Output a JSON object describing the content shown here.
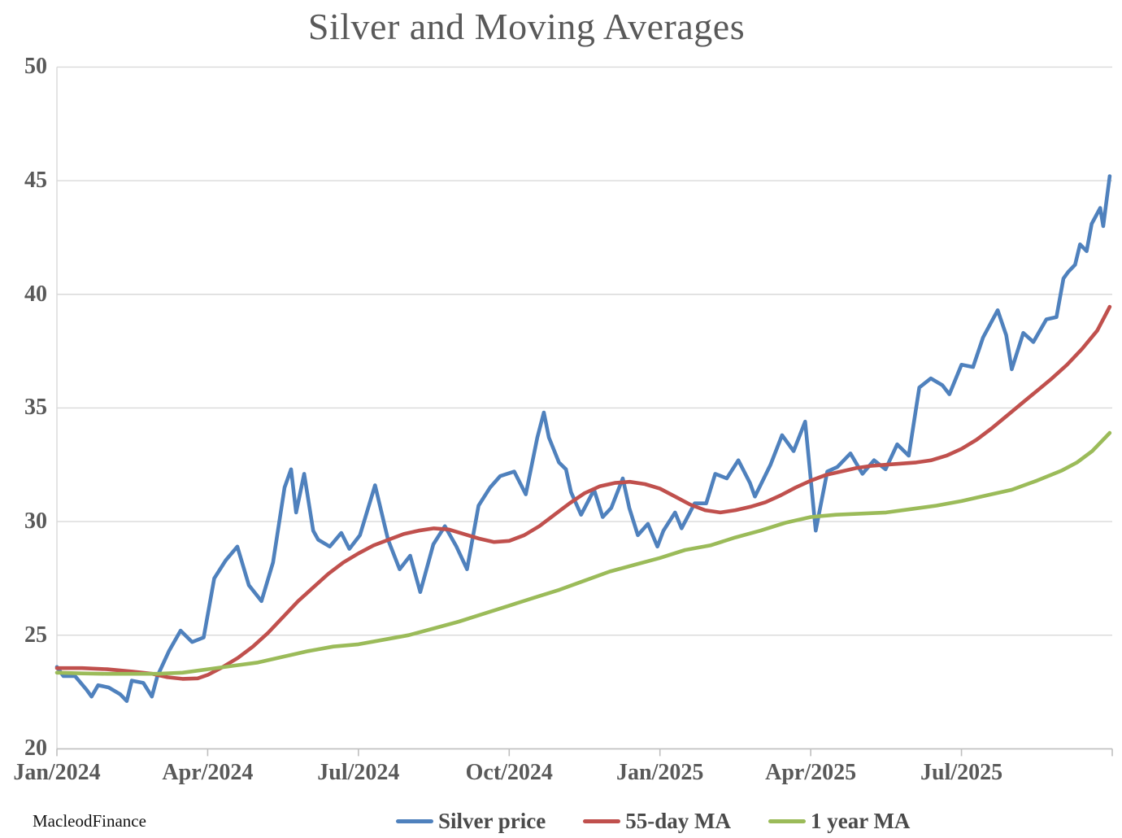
{
  "title": "Silver and Moving Averages",
  "watermark": "MacleodFinance",
  "palette": {
    "silver_price": "#4F81BD",
    "ma_55day": "#C0504D",
    "ma_1year": "#9BBB59",
    "gridline": "#d9d9d9",
    "axis_line": "#bfbfbf",
    "text_gray": "#595959"
  },
  "chart_data": {
    "type": "line",
    "title": "Silver and Moving Averages",
    "xlabel": "",
    "ylabel": "",
    "grid": true,
    "legend_position": "bottom",
    "y_axis": {
      "range": [
        20,
        50
      ],
      "ticks": [
        50,
        45,
        40,
        35,
        30,
        25,
        20
      ]
    },
    "x_axis": {
      "unit": "months since Jan 2024",
      "range_months": [
        0,
        21
      ],
      "tick_months": [
        0,
        3,
        6,
        9,
        12,
        15,
        18
      ],
      "tick_labels": [
        "Jan/2024",
        "Apr/2024",
        "Jul/2024",
        "Oct/2024",
        "Jan/2025",
        "Apr/2025",
        "Jul/2025"
      ],
      "minor_tick_months": [
        0,
        3,
        6,
        9,
        12,
        15,
        18,
        21
      ]
    },
    "series": [
      {
        "name": "Silver price",
        "color": "#4F81BD",
        "points": [
          [
            0,
            23.6
          ],
          [
            0.13,
            23.2
          ],
          [
            0.36,
            23.2
          ],
          [
            0.59,
            22.6
          ],
          [
            0.69,
            22.3
          ],
          [
            0.82,
            22.8
          ],
          [
            1.03,
            22.7
          ],
          [
            1.26,
            22.4
          ],
          [
            1.39,
            22.1
          ],
          [
            1.49,
            23.0
          ],
          [
            1.72,
            22.9
          ],
          [
            1.89,
            22.3
          ],
          [
            2.0,
            23.2
          ],
          [
            2.23,
            24.3
          ],
          [
            2.46,
            25.2
          ],
          [
            2.69,
            24.7
          ],
          [
            2.92,
            24.9
          ],
          [
            3.13,
            27.5
          ],
          [
            3.36,
            28.3
          ],
          [
            3.59,
            28.9
          ],
          [
            3.82,
            27.2
          ],
          [
            4.07,
            26.5
          ],
          [
            4.3,
            28.2
          ],
          [
            4.53,
            31.5
          ],
          [
            4.66,
            32.3
          ],
          [
            4.76,
            30.4
          ],
          [
            4.92,
            32.1
          ],
          [
            5.1,
            29.6
          ],
          [
            5.2,
            29.2
          ],
          [
            5.43,
            28.9
          ],
          [
            5.66,
            29.5
          ],
          [
            5.82,
            28.8
          ],
          [
            6.03,
            29.4
          ],
          [
            6.33,
            31.6
          ],
          [
            6.59,
            29.2
          ],
          [
            6.82,
            27.9
          ],
          [
            7.03,
            28.5
          ],
          [
            7.23,
            26.9
          ],
          [
            7.49,
            29.0
          ],
          [
            7.72,
            29.8
          ],
          [
            7.95,
            28.9
          ],
          [
            8.16,
            27.9
          ],
          [
            8.39,
            30.7
          ],
          [
            8.62,
            31.5
          ],
          [
            8.82,
            32.0
          ],
          [
            9.1,
            32.2
          ],
          [
            9.33,
            31.2
          ],
          [
            9.56,
            33.7
          ],
          [
            9.69,
            34.8
          ],
          [
            9.79,
            33.7
          ],
          [
            9.99,
            32.6
          ],
          [
            10.13,
            32.3
          ],
          [
            10.23,
            31.3
          ],
          [
            10.43,
            30.3
          ],
          [
            10.69,
            31.4
          ],
          [
            10.86,
            30.2
          ],
          [
            11.03,
            30.6
          ],
          [
            11.26,
            31.9
          ],
          [
            11.39,
            30.6
          ],
          [
            11.56,
            29.4
          ],
          [
            11.76,
            29.9
          ],
          [
            11.95,
            28.9
          ],
          [
            12.07,
            29.6
          ],
          [
            12.3,
            30.4
          ],
          [
            12.43,
            29.7
          ],
          [
            12.69,
            30.8
          ],
          [
            12.92,
            30.8
          ],
          [
            13.1,
            32.1
          ],
          [
            13.33,
            31.9
          ],
          [
            13.56,
            32.7
          ],
          [
            13.79,
            31.7
          ],
          [
            13.89,
            31.1
          ],
          [
            14.2,
            32.5
          ],
          [
            14.43,
            33.8
          ],
          [
            14.66,
            33.1
          ],
          [
            14.89,
            34.4
          ],
          [
            15.1,
            29.6
          ],
          [
            15.33,
            32.2
          ],
          [
            15.53,
            32.4
          ],
          [
            15.79,
            33.0
          ],
          [
            16.03,
            32.1
          ],
          [
            16.26,
            32.7
          ],
          [
            16.49,
            32.3
          ],
          [
            16.72,
            33.4
          ],
          [
            16.95,
            32.9
          ],
          [
            17.16,
            35.9
          ],
          [
            17.39,
            36.3
          ],
          [
            17.62,
            36.0
          ],
          [
            17.76,
            35.6
          ],
          [
            18.0,
            36.9
          ],
          [
            18.23,
            36.8
          ],
          [
            18.43,
            38.1
          ],
          [
            18.72,
            39.3
          ],
          [
            18.89,
            38.2
          ],
          [
            19.0,
            36.7
          ],
          [
            19.23,
            38.3
          ],
          [
            19.43,
            37.9
          ],
          [
            19.69,
            38.9
          ],
          [
            19.89,
            39.0
          ],
          [
            20.03,
            40.7
          ],
          [
            20.13,
            41.0
          ],
          [
            20.26,
            41.3
          ],
          [
            20.36,
            42.2
          ],
          [
            20.49,
            41.9
          ],
          [
            20.59,
            43.1
          ],
          [
            20.76,
            43.8
          ],
          [
            20.82,
            43.0
          ],
          [
            20.95,
            45.2
          ]
        ]
      },
      {
        "name": "55-day MA",
        "color": "#C0504D",
        "points": [
          [
            0,
            23.55
          ],
          [
            0.5,
            23.55
          ],
          [
            1,
            23.5
          ],
          [
            1.5,
            23.4
          ],
          [
            1.9,
            23.3
          ],
          [
            2.2,
            23.15
          ],
          [
            2.5,
            23.08
          ],
          [
            2.8,
            23.1
          ],
          [
            3,
            23.25
          ],
          [
            3.3,
            23.6
          ],
          [
            3.6,
            24.0
          ],
          [
            3.9,
            24.5
          ],
          [
            4.2,
            25.1
          ],
          [
            4.5,
            25.8
          ],
          [
            4.8,
            26.5
          ],
          [
            5.1,
            27.1
          ],
          [
            5.4,
            27.7
          ],
          [
            5.7,
            28.2
          ],
          [
            6,
            28.6
          ],
          [
            6.3,
            28.95
          ],
          [
            6.6,
            29.2
          ],
          [
            6.9,
            29.45
          ],
          [
            7.2,
            29.6
          ],
          [
            7.5,
            29.7
          ],
          [
            7.8,
            29.65
          ],
          [
            8.1,
            29.45
          ],
          [
            8.4,
            29.25
          ],
          [
            8.7,
            29.1
          ],
          [
            9,
            29.15
          ],
          [
            9.3,
            29.4
          ],
          [
            9.6,
            29.8
          ],
          [
            9.9,
            30.3
          ],
          [
            10.2,
            30.8
          ],
          [
            10.5,
            31.25
          ],
          [
            10.8,
            31.55
          ],
          [
            11.1,
            31.7
          ],
          [
            11.4,
            31.75
          ],
          [
            11.7,
            31.65
          ],
          [
            12,
            31.45
          ],
          [
            12.3,
            31.1
          ],
          [
            12.6,
            30.75
          ],
          [
            12.9,
            30.5
          ],
          [
            13.2,
            30.4
          ],
          [
            13.5,
            30.5
          ],
          [
            13.8,
            30.65
          ],
          [
            14.1,
            30.85
          ],
          [
            14.4,
            31.15
          ],
          [
            14.7,
            31.5
          ],
          [
            15,
            31.8
          ],
          [
            15.3,
            32.05
          ],
          [
            15.6,
            32.2
          ],
          [
            15.9,
            32.35
          ],
          [
            16.2,
            32.45
          ],
          [
            16.5,
            32.5
          ],
          [
            16.8,
            32.55
          ],
          [
            17.1,
            32.6
          ],
          [
            17.4,
            32.7
          ],
          [
            17.7,
            32.9
          ],
          [
            18,
            33.2
          ],
          [
            18.3,
            33.6
          ],
          [
            18.6,
            34.1
          ],
          [
            18.9,
            34.65
          ],
          [
            19.2,
            35.2
          ],
          [
            19.5,
            35.75
          ],
          [
            19.8,
            36.3
          ],
          [
            20.1,
            36.9
          ],
          [
            20.4,
            37.6
          ],
          [
            20.7,
            38.4
          ],
          [
            20.95,
            39.45
          ]
        ]
      },
      {
        "name": "1 year MA",
        "color": "#9BBB59",
        "points": [
          [
            0,
            23.35
          ],
          [
            0.5,
            23.32
          ],
          [
            1,
            23.3
          ],
          [
            1.5,
            23.3
          ],
          [
            2,
            23.3
          ],
          [
            2.5,
            23.35
          ],
          [
            3,
            23.5
          ],
          [
            3.5,
            23.65
          ],
          [
            4,
            23.8
          ],
          [
            4.5,
            24.05
          ],
          [
            5,
            24.3
          ],
          [
            5.5,
            24.5
          ],
          [
            6,
            24.6
          ],
          [
            6.5,
            24.8
          ],
          [
            7,
            25.0
          ],
          [
            7.5,
            25.3
          ],
          [
            8,
            25.6
          ],
          [
            8.5,
            25.95
          ],
          [
            9,
            26.3
          ],
          [
            9.5,
            26.65
          ],
          [
            10,
            27.0
          ],
          [
            10.5,
            27.4
          ],
          [
            11,
            27.8
          ],
          [
            11.5,
            28.1
          ],
          [
            12,
            28.4
          ],
          [
            12.5,
            28.75
          ],
          [
            13,
            28.95
          ],
          [
            13.5,
            29.3
          ],
          [
            14,
            29.6
          ],
          [
            14.5,
            29.95
          ],
          [
            15,
            30.2
          ],
          [
            15.5,
            30.3
          ],
          [
            16,
            30.35
          ],
          [
            16.5,
            30.4
          ],
          [
            17,
            30.55
          ],
          [
            17.5,
            30.7
          ],
          [
            18,
            30.9
          ],
          [
            18.5,
            31.15
          ],
          [
            19,
            31.4
          ],
          [
            19.5,
            31.8
          ],
          [
            20,
            32.25
          ],
          [
            20.3,
            32.6
          ],
          [
            20.6,
            33.1
          ],
          [
            20.95,
            33.9
          ]
        ]
      }
    ]
  }
}
